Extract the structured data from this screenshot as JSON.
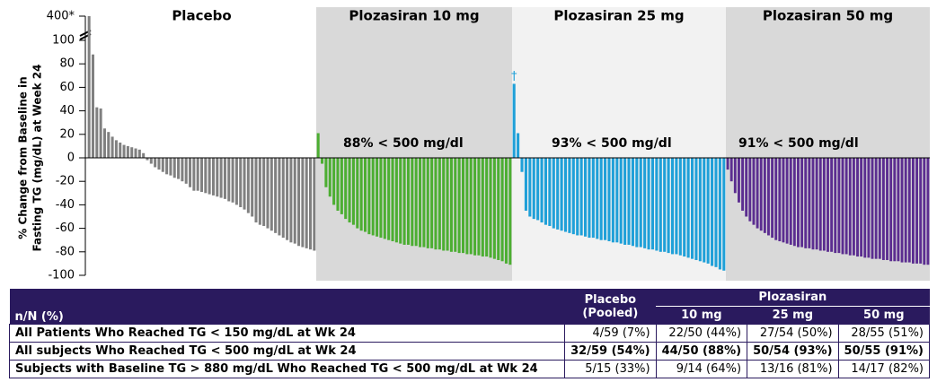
{
  "chart_data": {
    "type": "bar",
    "y_label": [
      "% Change from Baseline in",
      "Fasting TG (mg/dL) at Week 24"
    ],
    "ylim": [
      -100,
      400
    ],
    "axis_break": [
      100,
      400
    ],
    "yticks": [
      {
        "value": 400,
        "label": "400*"
      },
      100,
      80,
      60,
      40,
      20,
      0,
      -20,
      -40,
      -60,
      -80,
      -100
    ],
    "series": [
      {
        "name": "Placebo",
        "color": "#808080",
        "values": [
          400,
          88,
          43,
          42,
          25,
          22,
          18,
          15,
          13,
          11,
          10,
          9,
          8,
          7,
          4,
          -2,
          -5,
          -8,
          -10,
          -12,
          -14,
          -15,
          -17,
          -18,
          -20,
          -22,
          -25,
          -28,
          -28,
          -29,
          -30,
          -31,
          -32,
          -33,
          -34,
          -35,
          -37,
          -38,
          -40,
          -42,
          -44,
          -47,
          -50,
          -55,
          -57,
          -58,
          -60,
          -62,
          -64,
          -66,
          -68,
          -70,
          -72,
          -73,
          -75,
          -76,
          -77,
          -78,
          -79
        ]
      },
      {
        "name": "Plozasiran 10 mg",
        "color": "#4cae32",
        "values": [
          21,
          -5,
          -25,
          -33,
          -40,
          -45,
          -48,
          -52,
          -55,
          -57,
          -60,
          -62,
          -63,
          -65,
          -66,
          -67,
          -68,
          -69,
          -70,
          -71,
          -72,
          -73,
          -74,
          -74,
          -75,
          -75,
          -76,
          -76,
          -77,
          -77,
          -78,
          -78,
          -79,
          -79,
          -80,
          -80,
          -81,
          -81,
          -82,
          -82,
          -83,
          -83,
          -84,
          -84,
          -85,
          -86,
          -87,
          -88,
          -90,
          -91
        ]
      },
      {
        "name": "Plozasiran 25 mg",
        "color": "#1fa0d8",
        "values": [
          63,
          21,
          -12,
          -45,
          -50,
          -52,
          -53,
          -55,
          -57,
          -58,
          -60,
          -61,
          -62,
          -63,
          -64,
          -65,
          -66,
          -66,
          -67,
          -68,
          -68,
          -69,
          -70,
          -70,
          -71,
          -72,
          -72,
          -73,
          -74,
          -74,
          -75,
          -76,
          -76,
          -77,
          -78,
          -78,
          -79,
          -80,
          -80,
          -81,
          -82,
          -82,
          -83,
          -84,
          -85,
          -86,
          -87,
          -88,
          -89,
          -90,
          -92,
          -93,
          -95,
          -96
        ]
      },
      {
        "name": "Plozasiran 50 mg",
        "color": "#5b2d90",
        "values": [
          -10,
          -20,
          -30,
          -38,
          -45,
          -50,
          -54,
          -57,
          -60,
          -62,
          -64,
          -66,
          -68,
          -70,
          -71,
          -72,
          -73,
          -74,
          -75,
          -76,
          -76,
          -77,
          -77,
          -78,
          -78,
          -79,
          -79,
          -80,
          -80,
          -81,
          -81,
          -82,
          -82,
          -83,
          -83,
          -84,
          -84,
          -85,
          -85,
          -86,
          -86,
          -86,
          -87,
          -87,
          -88,
          -88,
          -88,
          -89,
          -89,
          -89,
          -90,
          -90,
          -90,
          -91,
          -91
        ]
      }
    ],
    "annotations": [
      "88% < 500 mg/dl",
      "93% < 500 mg/dl",
      "91% < 500 mg/dl",
      "†"
    ]
  },
  "table": {
    "corner": "n/N (%)",
    "placebo": [
      "Placebo",
      "(Pooled)"
    ],
    "group": "Plozasiran",
    "doses": [
      "10 mg",
      "25 mg",
      "50 mg"
    ],
    "rows": [
      {
        "label": "All Patients Who Reached TG < 150 mg/dL at Wk 24",
        "cells": [
          "4/59 (7%)",
          "22/50 (44%)",
          "27/54 (50%)",
          "28/55 (51%)"
        ]
      },
      {
        "label": "All subjects Who Reached TG < 500 mg/dL at Wk 24",
        "cells": [
          "32/59 (54%)",
          "44/50 (88%)",
          "50/54 (93%)",
          "50/55 (91%)"
        ]
      },
      {
        "label": "Subjects with Baseline TG > 880 mg/dL Who Reached TG < 500 mg/dL at Wk 24",
        "cells": [
          "5/15 (33%)",
          "9/14 (64%)",
          "13/16 (81%)",
          "14/17 (82%)"
        ]
      }
    ]
  }
}
